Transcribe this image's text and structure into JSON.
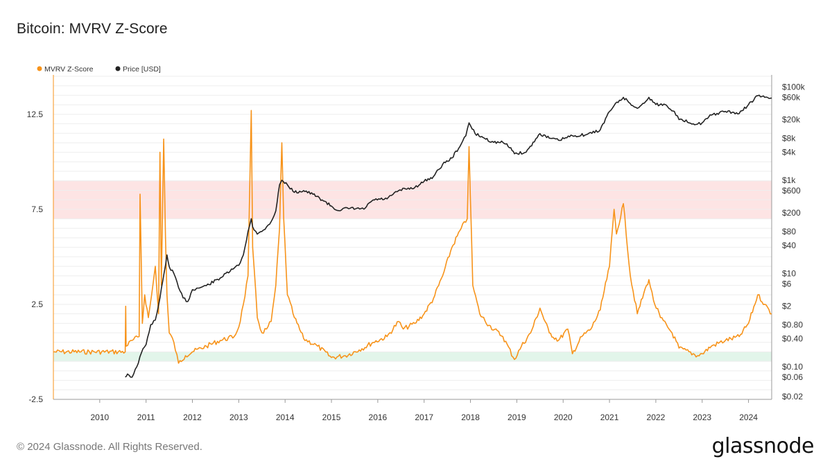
{
  "header": {
    "title": "Bitcoin: MVRV Z-Score"
  },
  "footer": {
    "copyright": "© 2024 Glassnode. All Rights Reserved.",
    "brand": "glassnode"
  },
  "colors": {
    "mvrv": "#f7931a",
    "price": "#222222",
    "red_band": "#fde4e4",
    "green_band": "#e2f5ea",
    "grid": "#eeeeee"
  },
  "chart_data": {
    "type": "line",
    "title": "Bitcoin: MVRV Z-Score",
    "legend_position": "top-left",
    "grid": true,
    "x_range": [
      2009.0,
      2024.5
    ],
    "x_ticks": [
      "2010",
      "2011",
      "2012",
      "2013",
      "2014",
      "2015",
      "2016",
      "2017",
      "2018",
      "2019",
      "2020",
      "2021",
      "2022",
      "2023",
      "2024"
    ],
    "y_left": {
      "ylim": [
        -2.5,
        14.5
      ],
      "tick_labels": [
        "-2.5",
        "2.5",
        "7.5",
        "12.5"
      ],
      "tick_values": [
        -2.5,
        2.5,
        7.5,
        12.5
      ]
    },
    "y_right": {
      "scale": "log",
      "ylim": [
        0.02,
        170000
      ],
      "tick_labels": [
        "$100k",
        "$60k",
        "$20k",
        "$8k",
        "$4k",
        "$1k",
        "$600",
        "$200",
        "$80",
        "$40",
        "$10",
        "$6",
        "$2",
        "$0.80",
        "$0.40",
        "$0.10",
        "$0.06",
        "$0.02"
      ],
      "tick_values": [
        100000,
        60000,
        20000,
        8000,
        4000,
        1000,
        600,
        200,
        80,
        40,
        10,
        6,
        2,
        0.8,
        0.4,
        0.1,
        0.06,
        0.02
      ]
    },
    "bands": [
      {
        "zone": "overvalued",
        "from": 7.0,
        "to": 9.0,
        "color": "#fde4e4"
      },
      {
        "zone": "undervalued",
        "from": -0.5,
        "to": 0.0,
        "color": "#e2f5ea"
      }
    ],
    "series": [
      {
        "name": "MVRV Z-Score",
        "axis": "left",
        "color": "#f7931a",
        "x": [
          2009.0,
          2010.55,
          2010.56,
          2010.57,
          2010.7,
          2010.85,
          2010.87,
          2010.92,
          2010.97,
          2011.05,
          2011.12,
          2011.2,
          2011.27,
          2011.3,
          2011.33,
          2011.38,
          2011.42,
          2011.45,
          2011.5,
          2011.6,
          2011.7,
          2011.85,
          2012.0,
          2012.3,
          2012.6,
          2012.9,
          2013.0,
          2013.1,
          2013.2,
          2013.27,
          2013.3,
          2013.4,
          2013.5,
          2013.6,
          2013.7,
          2013.8,
          2013.88,
          2013.93,
          2013.97,
          2014.05,
          2014.2,
          2014.4,
          2014.7,
          2015.0,
          2015.3,
          2015.6,
          2015.9,
          2016.2,
          2016.45,
          2016.55,
          2016.8,
          2017.0,
          2017.2,
          2017.4,
          2017.6,
          2017.8,
          2017.93,
          2017.97,
          2018.05,
          2018.2,
          2018.4,
          2018.7,
          2018.95,
          2019.1,
          2019.3,
          2019.5,
          2019.7,
          2019.9,
          2020.1,
          2020.2,
          2020.4,
          2020.6,
          2020.8,
          2021.0,
          2021.1,
          2021.15,
          2021.3,
          2021.45,
          2021.6,
          2021.8,
          2021.85,
          2021.95,
          2022.1,
          2022.35,
          2022.5,
          2022.9,
          2023.0,
          2023.2,
          2023.5,
          2023.8,
          2024.0,
          2024.2,
          2024.35,
          2024.5
        ],
        "y": [
          0.0,
          0.0,
          2.4,
          0.3,
          0.6,
          0.8,
          8.3,
          1.5,
          3.0,
          1.8,
          3.0,
          4.5,
          2.0,
          10.5,
          3.5,
          11.2,
          6.0,
          3.0,
          1.0,
          0.5,
          -0.6,
          -0.2,
          0.0,
          0.3,
          0.6,
          0.8,
          1.3,
          2.5,
          4.0,
          12.7,
          5.5,
          1.8,
          1.0,
          1.2,
          1.6,
          3.5,
          6.5,
          11.0,
          7.0,
          3.0,
          1.8,
          0.7,
          0.3,
          -0.3,
          -0.2,
          0.1,
          0.5,
          0.8,
          1.6,
          1.2,
          1.5,
          2.0,
          2.8,
          4.0,
          5.5,
          6.5,
          7.0,
          10.8,
          3.5,
          2.0,
          1.4,
          0.8,
          -0.4,
          0.3,
          1.0,
          2.3,
          1.0,
          0.6,
          1.2,
          -0.1,
          0.8,
          1.2,
          2.2,
          4.5,
          7.5,
          6.2,
          7.8,
          4.0,
          2.0,
          3.5,
          3.8,
          2.7,
          1.8,
          1.0,
          0.2,
          -0.2,
          -0.1,
          0.3,
          0.6,
          0.8,
          1.5,
          3.0,
          2.5,
          2.0
        ]
      },
      {
        "name": "Price [USD]",
        "axis": "right",
        "color": "#222222",
        "x": [
          2010.55,
          2010.6,
          2010.7,
          2010.8,
          2010.9,
          2011.0,
          2011.1,
          2011.2,
          2011.3,
          2011.42,
          2011.45,
          2011.5,
          2011.6,
          2011.7,
          2011.8,
          2011.9,
          2012.0,
          2012.3,
          2012.6,
          2012.9,
          2013.0,
          2013.1,
          2013.2,
          2013.27,
          2013.3,
          2013.4,
          2013.5,
          2013.6,
          2013.7,
          2013.8,
          2013.88,
          2013.93,
          2014.05,
          2014.2,
          2014.4,
          2014.6,
          2014.8,
          2015.0,
          2015.1,
          2015.4,
          2015.7,
          2015.9,
          2016.2,
          2016.45,
          2016.6,
          2016.8,
          2017.0,
          2017.2,
          2017.4,
          2017.6,
          2017.8,
          2017.9,
          2017.97,
          2018.1,
          2018.3,
          2018.5,
          2018.7,
          2018.87,
          2018.95,
          2019.2,
          2019.5,
          2019.7,
          2019.9,
          2020.2,
          2020.5,
          2020.8,
          2021.0,
          2021.1,
          2021.3,
          2021.5,
          2021.6,
          2021.75,
          2021.85,
          2022.0,
          2022.2,
          2022.4,
          2022.5,
          2022.9,
          2023.0,
          2023.2,
          2023.5,
          2023.8,
          2024.0,
          2024.2,
          2024.35,
          2024.5
        ],
        "y": [
          0.06,
          0.07,
          0.06,
          0.1,
          0.2,
          0.3,
          0.8,
          1.0,
          3.0,
          15.0,
          25.0,
          14.0,
          10.0,
          5.0,
          3.0,
          2.5,
          4.5,
          5.5,
          8.0,
          13.0,
          15.0,
          25.0,
          80.0,
          150.0,
          100.0,
          70.0,
          80.0,
          100.0,
          130.0,
          220.0,
          800.0,
          1000.0,
          800.0,
          550.0,
          600.0,
          500.0,
          380.0,
          280.0,
          230.0,
          250.0,
          240.0,
          380.0,
          400.0,
          600.0,
          650.0,
          700.0,
          950.0,
          1200.0,
          2200.0,
          3000.0,
          6000.0,
          9000.0,
          17000.0,
          10000.0,
          8000.0,
          6500.0,
          6500.0,
          5000.0,
          3700.0,
          4000.0,
          10000.0,
          8000.0,
          7200.0,
          9000.0,
          9500.0,
          12000.0,
          30000.0,
          40000.0,
          60000.0,
          40000.0,
          35000.0,
          45000.0,
          60000.0,
          42000.0,
          42000.0,
          30000.0,
          20000.0,
          16000.0,
          17000.0,
          25000.0,
          30000.0,
          27000.0,
          42000.0,
          65000.0,
          60000.0,
          58000.0
        ]
      }
    ]
  }
}
